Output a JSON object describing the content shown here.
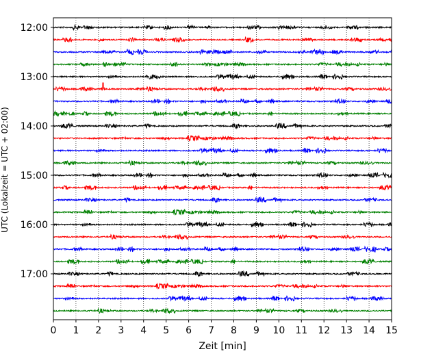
{
  "chart_data": {
    "type": "line",
    "title": "",
    "xlabel": "Zeit  [min]",
    "ylabel": "UTC (Lokalzeit = UTC + 02:00)",
    "xlim": [
      0,
      15
    ],
    "x_ticks": [
      "0",
      "1",
      "2",
      "3",
      "4",
      "5",
      "6",
      "7",
      "8",
      "9",
      "10",
      "11",
      "12",
      "13",
      "14",
      "15"
    ],
    "y_ticks": [
      "12:00",
      "13:00",
      "14:00",
      "15:00",
      "16:00",
      "17:00"
    ],
    "rows_per_hour": 4,
    "row_count": 24,
    "grid": "vertical dotted lines at each minute",
    "legend": "none",
    "colors": [
      "#000000",
      "#ff0000",
      "#0000ff",
      "#008000"
    ],
    "notes": "Helicorder seismogram: one trace per 15-minute interval from 12:00 to 17:45 UTC; small spike near 2.2 min on the 13:15 trace."
  }
}
